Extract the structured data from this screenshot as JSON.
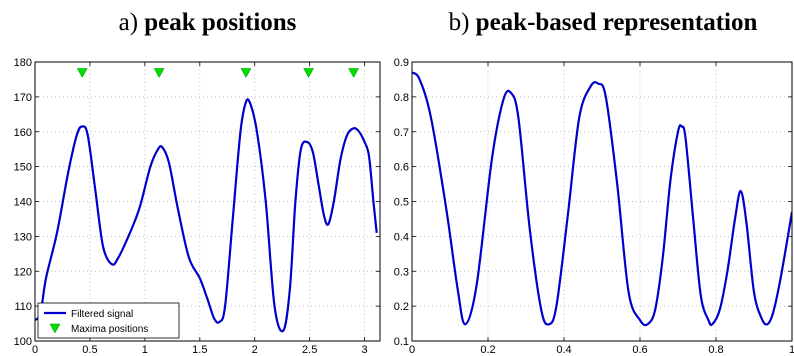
{
  "panels": [
    {
      "prefix": "a)",
      "name": "peak positions"
    },
    {
      "prefix": "b)",
      "name": "peak-based representation"
    }
  ],
  "colors": {
    "line": "#0000cc",
    "marker": "#00dd00",
    "grid": "#b0b0b0"
  },
  "chart_data": [
    {
      "type": "line",
      "title": "a) peak positions",
      "xlim": [
        0,
        3.14
      ],
      "ylim": [
        100,
        180
      ],
      "xticks": [
        0,
        0.5,
        1,
        1.5,
        2,
        2.5,
        3
      ],
      "xtick_labels": [
        "0",
        "0.5",
        "1",
        "1.5",
        "2",
        "2.5",
        "3"
      ],
      "yticks": [
        100,
        110,
        120,
        130,
        140,
        150,
        160,
        170,
        180
      ],
      "ytick_labels": [
        "100",
        "110",
        "120",
        "130",
        "140",
        "150",
        "160",
        "170",
        "180"
      ],
      "grid": true,
      "legend_position": "bottom-left",
      "series": [
        {
          "name": "Filtered signal",
          "style": "line",
          "x": [
            0,
            0.05,
            0.1,
            0.2,
            0.3,
            0.38,
            0.43,
            0.48,
            0.55,
            0.62,
            0.7,
            0.76,
            0.85,
            0.95,
            1.05,
            1.12,
            1.16,
            1.22,
            1.3,
            1.4,
            1.5,
            1.57,
            1.63,
            1.68,
            1.73,
            1.8,
            1.87,
            1.92,
            1.96,
            2.02,
            2.1,
            2.18,
            2.26,
            2.32,
            2.37,
            2.42,
            2.48,
            2.53,
            2.58,
            2.63,
            2.67,
            2.72,
            2.78,
            2.84,
            2.9,
            2.95,
            3.0,
            3.04,
            3.08,
            3.11
          ],
          "y": [
            106,
            108,
            118,
            131,
            148,
            159,
            161.5,
            159,
            143,
            127,
            122,
            124,
            130,
            138,
            150,
            155,
            155.5,
            151,
            138,
            124,
            118,
            112,
            106.5,
            105.5,
            110,
            135,
            160,
            168.5,
            168,
            160,
            140,
            110,
            103,
            115,
            140,
            155,
            157,
            154,
            145,
            136,
            133.5,
            140,
            152,
            159,
            161,
            160,
            157,
            153,
            140,
            131
          ]
        },
        {
          "name": "Maxima positions",
          "style": "markers",
          "x": [
            0.43,
            1.13,
            1.92,
            2.49,
            2.9
          ],
          "y": [
            177,
            177,
            177,
            177,
            177
          ]
        }
      ]
    },
    {
      "type": "line",
      "title": "b) peak-based representation",
      "xlim": [
        0,
        1
      ],
      "ylim": [
        0.1,
        0.9
      ],
      "xticks": [
        0,
        0.2,
        0.4,
        0.6,
        0.8,
        1
      ],
      "xtick_labels": [
        "0",
        "0.2",
        "0.4",
        "0.6",
        "0.8",
        "1"
      ],
      "yticks": [
        0.1,
        0.2,
        0.3,
        0.4,
        0.5,
        0.6,
        0.7,
        0.8,
        0.9
      ],
      "ytick_labels": [
        "0.1",
        "0.2",
        "0.3",
        "0.4",
        "0.5",
        "0.6",
        "0.7",
        "0.8",
        "0.9"
      ],
      "grid": true,
      "series": [
        {
          "style": "line",
          "x": [
            0,
            0.02,
            0.05,
            0.09,
            0.12,
            0.14,
            0.17,
            0.21,
            0.24,
            0.26,
            0.28,
            0.31,
            0.34,
            0.36,
            0.38,
            0.41,
            0.44,
            0.47,
            0.49,
            0.51,
            0.54,
            0.57,
            0.6,
            0.62,
            0.64,
            0.66,
            0.68,
            0.7,
            0.71,
            0.72,
            0.74,
            0.76,
            0.78,
            0.79,
            0.81,
            0.83,
            0.85,
            0.865,
            0.88,
            0.9,
            0.92,
            0.935,
            0.95,
            0.97,
            1.0
          ],
          "y": [
            0.87,
            0.85,
            0.74,
            0.48,
            0.25,
            0.148,
            0.26,
            0.62,
            0.79,
            0.812,
            0.74,
            0.42,
            0.19,
            0.148,
            0.2,
            0.46,
            0.74,
            0.83,
            0.838,
            0.8,
            0.55,
            0.24,
            0.16,
            0.148,
            0.19,
            0.34,
            0.56,
            0.7,
            0.715,
            0.68,
            0.45,
            0.23,
            0.16,
            0.148,
            0.19,
            0.3,
            0.45,
            0.53,
            0.44,
            0.24,
            0.165,
            0.148,
            0.18,
            0.28,
            0.47
          ]
        }
      ]
    }
  ],
  "legend": {
    "items": [
      "Filtered signal",
      "Maxima positions"
    ]
  }
}
